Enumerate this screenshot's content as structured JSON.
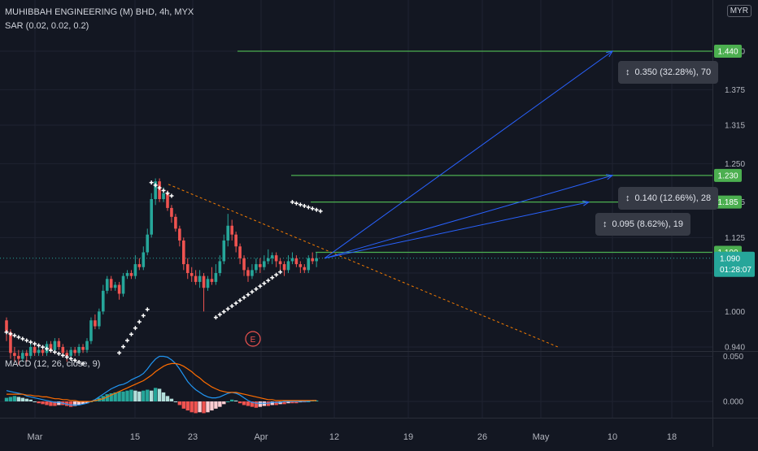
{
  "header": {
    "symbol_line": "MUHIBBAH ENGINEERING (M) BHD, 4h, MYX",
    "sar_line": "SAR (0.02, 0.02, 0.2)",
    "macd_line": "MACD (12, 26, close, 9)",
    "currency": "MYR"
  },
  "colors": {
    "background": "#131722",
    "up": "#26a69a",
    "down": "#ef5350",
    "target": "#4caf50",
    "projection": "#2962ff",
    "macd": "#2196f3",
    "signal": "#ff6d00"
  },
  "measurements": [
    {
      "text": "0.350 (32.28%), 70",
      "icon": "measure-icon"
    },
    {
      "text": "0.140 (12.66%), 28",
      "icon": "measure-icon"
    },
    {
      "text": "0.095 (8.62%), 19",
      "icon": "measure-icon"
    }
  ],
  "earnings_marker": "E",
  "countdown": "01:28:07",
  "chart_data": [
    {
      "type": "candlestick",
      "title": "MUHIBBAH ENGINEERING (M) BHD, 4h, MYX",
      "x_ticks": [
        "Mar",
        "15",
        "23",
        "Apr",
        "12",
        "19",
        "26",
        "May",
        "10",
        "18"
      ],
      "y_ticks": [
        0.94,
        1.0,
        1.065,
        1.125,
        1.185,
        1.25,
        1.315,
        1.375,
        1.44
      ],
      "ylim": [
        0.94,
        1.46
      ],
      "last_price": 1.09,
      "target_levels": [
        1.44,
        1.23,
        1.185,
        1.1
      ],
      "sar": {
        "params": [
          0.02,
          0.02,
          0.2
        ]
      },
      "candles": [
        [
          0.985,
          0.965,
          0.99,
          0.95
        ],
        [
          0.965,
          0.93,
          0.97,
          0.92
        ],
        [
          0.93,
          0.925,
          0.94,
          0.915
        ],
        [
          0.925,
          0.92,
          0.935,
          0.91
        ],
        [
          0.92,
          0.93,
          0.935,
          0.915
        ],
        [
          0.93,
          0.925,
          0.935,
          0.915
        ],
        [
          0.925,
          0.94,
          0.945,
          0.92
        ],
        [
          0.94,
          0.93,
          0.945,
          0.925
        ],
        [
          0.93,
          0.935,
          0.94,
          0.925
        ],
        [
          0.935,
          0.93,
          0.94,
          0.925
        ],
        [
          0.93,
          0.945,
          0.95,
          0.925
        ],
        [
          0.945,
          0.935,
          0.95,
          0.93
        ],
        [
          0.935,
          0.95,
          0.955,
          0.93
        ],
        [
          0.95,
          0.94,
          0.955,
          0.935
        ],
        [
          0.94,
          0.93,
          0.945,
          0.925
        ],
        [
          0.93,
          0.925,
          0.935,
          0.915
        ],
        [
          0.925,
          0.935,
          0.94,
          0.92
        ],
        [
          0.935,
          0.93,
          0.94,
          0.925
        ],
        [
          0.93,
          0.94,
          0.945,
          0.925
        ],
        [
          0.94,
          0.935,
          0.945,
          0.93
        ],
        [
          0.935,
          0.95,
          0.955,
          0.93
        ],
        [
          0.95,
          0.985,
          0.99,
          0.945
        ],
        [
          0.985,
          0.975,
          0.995,
          0.97
        ],
        [
          0.975,
          1.0,
          1.005,
          0.97
        ],
        [
          1.0,
          1.035,
          1.045,
          0.995
        ],
        [
          1.035,
          1.055,
          1.06,
          1.03
        ],
        [
          1.055,
          1.04,
          1.06,
          1.035
        ],
        [
          1.04,
          1.045,
          1.05,
          1.035
        ],
        [
          1.045,
          1.03,
          1.05,
          1.02
        ],
        [
          1.03,
          1.06,
          1.065,
          1.025
        ],
        [
          1.06,
          1.065,
          1.07,
          1.055
        ],
        [
          1.065,
          1.06,
          1.07,
          1.055
        ],
        [
          1.06,
          1.08,
          1.095,
          1.055
        ],
        [
          1.08,
          1.075,
          1.09,
          1.07
        ],
        [
          1.075,
          1.1,
          1.11,
          1.07
        ],
        [
          1.1,
          1.13,
          1.14,
          1.095
        ],
        [
          1.13,
          1.19,
          1.2,
          1.125
        ],
        [
          1.19,
          1.22,
          1.225,
          1.18
        ],
        [
          1.22,
          1.19,
          1.225,
          1.185
        ],
        [
          1.19,
          1.2,
          1.21,
          1.185
        ],
        [
          1.2,
          1.175,
          1.205,
          1.17
        ],
        [
          1.175,
          1.16,
          1.18,
          1.15
        ],
        [
          1.16,
          1.14,
          1.165,
          1.135
        ],
        [
          1.14,
          1.12,
          1.145,
          1.11
        ],
        [
          1.12,
          1.08,
          1.125,
          1.07
        ],
        [
          1.08,
          1.065,
          1.09,
          1.055
        ],
        [
          1.065,
          1.06,
          1.075,
          1.05
        ],
        [
          1.06,
          1.05,
          1.07,
          1.045
        ],
        [
          1.05,
          1.06,
          1.07,
          1.04
        ],
        [
          1.06,
          1.04,
          1.065,
          1.0
        ],
        [
          1.04,
          1.055,
          1.06,
          1.035
        ],
        [
          1.055,
          1.05,
          1.075,
          1.045
        ],
        [
          1.05,
          1.065,
          1.08,
          1.045
        ],
        [
          1.065,
          1.085,
          1.095,
          1.06
        ],
        [
          1.085,
          1.12,
          1.13,
          1.08
        ],
        [
          1.12,
          1.145,
          1.165,
          1.11
        ],
        [
          1.145,
          1.13,
          1.155,
          1.12
        ],
        [
          1.13,
          1.11,
          1.135,
          1.1
        ],
        [
          1.11,
          1.09,
          1.115,
          1.08
        ],
        [
          1.09,
          1.07,
          1.095,
          1.06
        ],
        [
          1.07,
          1.06,
          1.075,
          1.05
        ],
        [
          1.06,
          1.07,
          1.08,
          1.055
        ],
        [
          1.07,
          1.08,
          1.09,
          1.065
        ],
        [
          1.08,
          1.075,
          1.09,
          1.065
        ],
        [
          1.075,
          1.085,
          1.095,
          1.07
        ],
        [
          1.085,
          1.09,
          1.105,
          1.08
        ],
        [
          1.09,
          1.095,
          1.1,
          1.08
        ],
        [
          1.095,
          1.085,
          1.1,
          1.075
        ],
        [
          1.085,
          1.08,
          1.09,
          1.07
        ],
        [
          1.08,
          1.07,
          1.085,
          1.06
        ],
        [
          1.07,
          1.085,
          1.095,
          1.065
        ],
        [
          1.085,
          1.09,
          1.1,
          1.08
        ],
        [
          1.09,
          1.08,
          1.095,
          1.075
        ],
        [
          1.08,
          1.075,
          1.085,
          1.065
        ],
        [
          1.075,
          1.07,
          1.08,
          1.065
        ],
        [
          1.07,
          1.09,
          1.095,
          1.065
        ],
        [
          1.09,
          1.085,
          1.1,
          1.08
        ],
        [
          1.085,
          1.09,
          1.1,
          1.075
        ]
      ]
    },
    {
      "type": "bar",
      "title": "MACD (12, 26, close, 9)",
      "y_ticks": [
        0.0,
        0.05
      ],
      "ylim": [
        -0.035,
        0.065
      ],
      "series": [
        {
          "name": "Histogram",
          "values": [
            0.004,
            0.005,
            0.006,
            0.005,
            0.004,
            0.003,
            0.002,
            0.0,
            -0.002,
            -0.003,
            -0.004,
            -0.005,
            -0.005,
            -0.004,
            -0.004,
            -0.005,
            -0.006,
            -0.005,
            -0.004,
            -0.003,
            -0.002,
            0.0,
            0.002,
            0.004,
            0.006,
            0.008,
            0.009,
            0.01,
            0.011,
            0.011,
            0.012,
            0.013,
            0.012,
            0.011,
            0.012,
            0.013,
            0.012,
            0.015,
            0.014,
            0.01,
            0.006,
            0.003,
            0.0,
            -0.004,
            -0.008,
            -0.01,
            -0.012,
            -0.013,
            -0.012,
            -0.013,
            -0.012,
            -0.01,
            -0.008,
            -0.006,
            -0.003,
            0.0,
            0.002,
            0.001,
            -0.002,
            -0.004,
            -0.005,
            -0.006,
            -0.007,
            -0.006,
            -0.005,
            -0.005,
            -0.004,
            -0.004,
            -0.003,
            -0.003,
            -0.002,
            -0.002,
            -0.002,
            -0.001,
            -0.001,
            0.0,
            0.001,
            0.001
          ]
        },
        {
          "name": "MACD",
          "values": [
            0.012,
            0.011,
            0.01,
            0.009,
            0.008,
            0.006,
            0.005,
            0.004,
            0.003,
            0.002,
            0.001,
            0.0,
            -0.001,
            -0.001,
            -0.002,
            -0.003,
            -0.004,
            -0.004,
            -0.004,
            -0.003,
            -0.002,
            0.0,
            0.002,
            0.005,
            0.008,
            0.011,
            0.014,
            0.016,
            0.018,
            0.019,
            0.021,
            0.024,
            0.026,
            0.028,
            0.031,
            0.036,
            0.042,
            0.047,
            0.05,
            0.05,
            0.049,
            0.046,
            0.042,
            0.036,
            0.029,
            0.022,
            0.017,
            0.013,
            0.01,
            0.007,
            0.005,
            0.004,
            0.004,
            0.005,
            0.007,
            0.009,
            0.01,
            0.009,
            0.007,
            0.004,
            0.001,
            -0.001,
            -0.002,
            -0.002,
            -0.002,
            -0.002,
            -0.001,
            -0.001,
            -0.001,
            0.0,
            0.0,
            0.0,
            0.0,
            0.0,
            0.0,
            0.0,
            0.001,
            0.001
          ]
        },
        {
          "name": "Signal",
          "values": [
            0.008,
            0.008,
            0.008,
            0.008,
            0.008,
            0.007,
            0.007,
            0.006,
            0.006,
            0.005,
            0.005,
            0.004,
            0.003,
            0.003,
            0.002,
            0.002,
            0.001,
            0.001,
            0.0,
            0.0,
            0.0,
            0.0,
            0.001,
            0.002,
            0.003,
            0.005,
            0.007,
            0.009,
            0.011,
            0.013,
            0.015,
            0.017,
            0.019,
            0.021,
            0.023,
            0.026,
            0.029,
            0.033,
            0.036,
            0.039,
            0.041,
            0.042,
            0.042,
            0.041,
            0.039,
            0.036,
            0.033,
            0.029,
            0.026,
            0.022,
            0.019,
            0.016,
            0.014,
            0.012,
            0.011,
            0.01,
            0.01,
            0.01,
            0.009,
            0.008,
            0.007,
            0.006,
            0.005,
            0.004,
            0.003,
            0.002,
            0.002,
            0.001,
            0.001,
            0.001,
            0.001,
            0.001,
            0.001,
            0.001,
            0.001,
            0.001,
            0.001,
            0.001
          ]
        }
      ]
    }
  ]
}
